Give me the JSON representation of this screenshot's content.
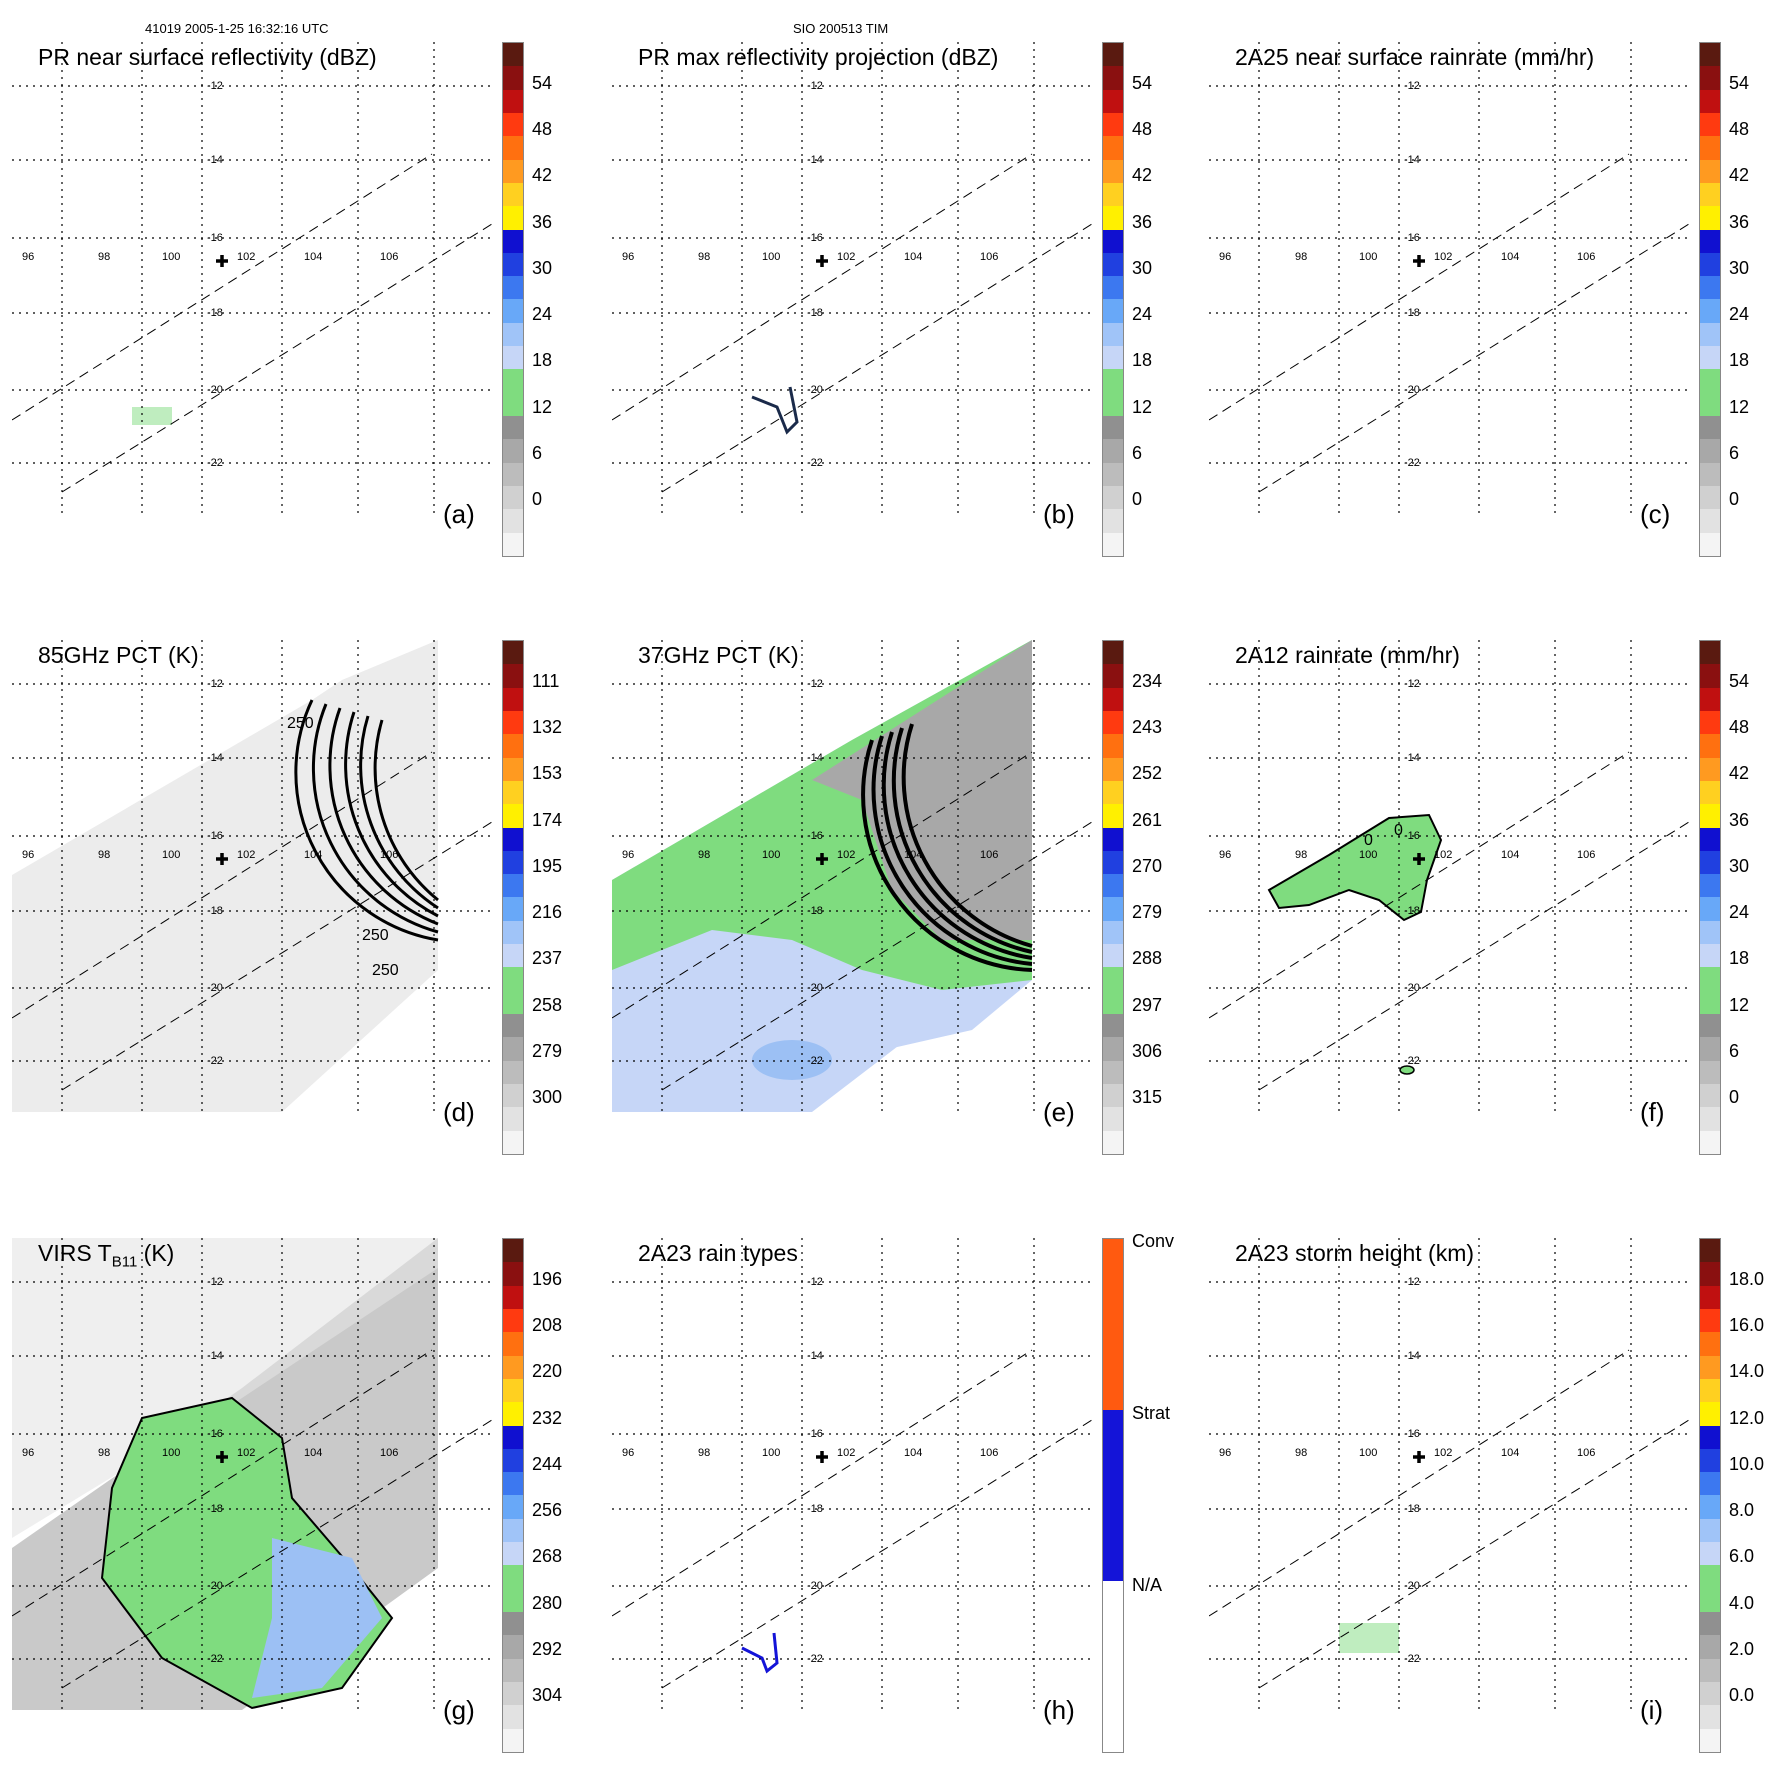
{
  "header": {
    "left": "41019 2005-1-25 16:32:16 UTC",
    "center": "SIO 200513 TIM"
  },
  "axes": {
    "lat_labels": [
      "-12",
      "-14",
      "-16",
      "-18",
      "-20",
      "-22"
    ],
    "lon_labels": [
      "96",
      "98",
      "100",
      "102",
      "104",
      "106"
    ],
    "storm_center_marker": "plus-icon"
  },
  "colors": {
    "green": "#7fdc7f",
    "lightblue": "#c6d6f7",
    "blue": "#1414d8",
    "yellow": "#fff000",
    "red": "#d01010",
    "darkred": "#5a1a10",
    "gray": "#c8c8c8"
  },
  "panels": [
    {
      "title": "PR near surface reflectivity (dBZ)",
      "label": "(a)",
      "colorbar_ticks": [
        "54",
        "48",
        "42",
        "36",
        "30",
        "24",
        "18",
        "12",
        "6",
        "0"
      ]
    },
    {
      "title": "PR max reflectivity projection (dBZ)",
      "label": "(b)",
      "colorbar_ticks": [
        "54",
        "48",
        "42",
        "36",
        "30",
        "24",
        "18",
        "12",
        "6",
        "0"
      ]
    },
    {
      "title": "2A25 near surface rainrate (mm/hr)",
      "label": "(c)",
      "colorbar_ticks": [
        "54",
        "48",
        "42",
        "36",
        "30",
        "24",
        "18",
        "12",
        "6",
        "0"
      ]
    },
    {
      "title": "85GHz PCT (K)",
      "label": "(d)",
      "colorbar_ticks": [
        "111",
        "132",
        "153",
        "174",
        "195",
        "216",
        "237",
        "258",
        "279",
        "300"
      ],
      "contour_labels": [
        "250",
        "250",
        "250"
      ]
    },
    {
      "title": "37GHz PCT (K)",
      "label": "(e)",
      "colorbar_ticks": [
        "234",
        "243",
        "252",
        "261",
        "270",
        "279",
        "288",
        "297",
        "306",
        "315"
      ]
    },
    {
      "title": "2A12 rainrate (mm/hr)",
      "label": "(f)",
      "colorbar_ticks": [
        "54",
        "48",
        "42",
        "36",
        "30",
        "24",
        "18",
        "12",
        "6",
        "0"
      ],
      "contour_labels": [
        "0",
        "0"
      ]
    },
    {
      "title": "VIRS T",
      "title_sub": "B11",
      "title_unit": " (K)",
      "label": "(g)",
      "colorbar_ticks": [
        "196",
        "208",
        "220",
        "232",
        "244",
        "256",
        "268",
        "280",
        "292",
        "304"
      ]
    },
    {
      "title": "2A23 rain types",
      "label": "(h)",
      "colorbar_ticks": [
        "Conv",
        "Strat",
        "N/A"
      ]
    },
    {
      "title": "2A23 storm height (km)",
      "label": "(i)",
      "colorbar_ticks": [
        "18.0",
        "16.0",
        "14.0",
        "12.0",
        "10.0",
        "8.0",
        "6.0",
        "4.0",
        "2.0",
        "0.0"
      ]
    }
  ]
}
